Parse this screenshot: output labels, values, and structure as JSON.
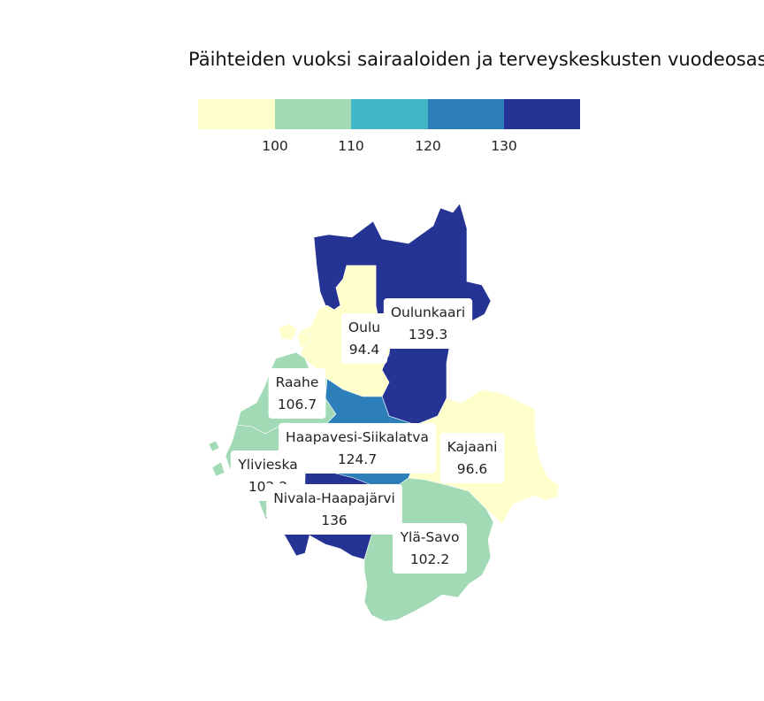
{
  "title": "Päihteiden vuoksi sairaaloiden ja terveyskeskusten vuodeosast",
  "legend": {
    "colors": [
      "#ffffcc",
      "#a1dab4",
      "#41b6c4",
      "#2c7fb8",
      "#253494"
    ],
    "ticks": [
      "100",
      "110",
      "120",
      "130"
    ]
  },
  "regions": [
    {
      "id": "oulunkaari",
      "name": "Oulunkaari",
      "value": "139.3",
      "color": "#253494"
    },
    {
      "id": "oulu",
      "name": "Oulu",
      "value": "94.4",
      "color": "#ffffcc"
    },
    {
      "id": "raahe",
      "name": "Raahe",
      "value": "106.7",
      "color": "#a1dab4"
    },
    {
      "id": "haapavesi",
      "name": "Haapavesi-Siikalatva",
      "value": "124.7",
      "color": "#2c7fb8"
    },
    {
      "id": "kajaani",
      "name": "Kajaani",
      "value": "96.6",
      "color": "#ffffcc"
    },
    {
      "id": "ylivieska",
      "name": "Ylivieska",
      "value": "102.2",
      "color": "#a1dab4"
    },
    {
      "id": "nivala",
      "name": "Nivala-Haapajärvi",
      "value": "136",
      "color": "#253494"
    },
    {
      "id": "ylasavo",
      "name": "Ylä-Savo",
      "value": "102.2",
      "color": "#a1dab4"
    }
  ]
}
